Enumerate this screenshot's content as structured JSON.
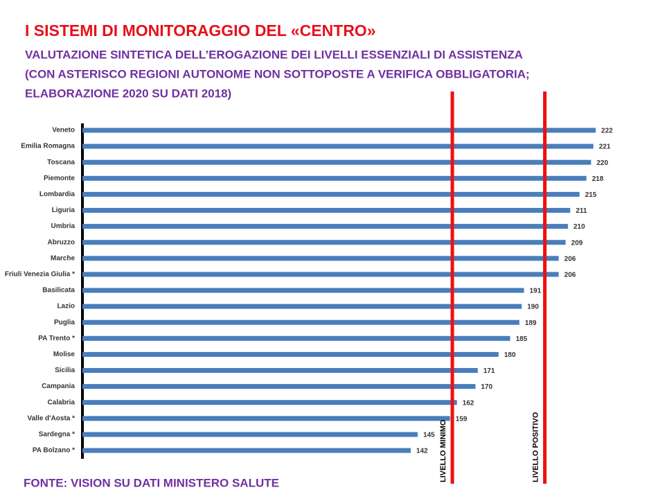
{
  "chart_data": {
    "type": "hbar",
    "title": "I SISTEMI DI MONITORAGGIO DEL «CENTRO»",
    "subtitle": [
      "VALUTAZIONE SINTETICA DELL’EROGAZIONE DEI LIVELLI ESSENZIALI DI ASSISTENZA",
      "(CON ASTERISCO REGIONI AUTONOME NON SOTTOPOSTE A VERIFICA OBBLIGATORIA;",
      "ELABORAZIONE 2020 SU DATI 2018)"
    ],
    "source": "FONTE: VISION SU DATI MINISTERO SALUTE",
    "categories": [
      "Veneto",
      "Emilia Romagna",
      "Toscana",
      "Piemonte",
      "Lombardia",
      "Liguria",
      "Umbria",
      "Abruzzo",
      "Marche",
      "Friuli Venezia Giulia *",
      "Basilicata",
      "Lazio",
      "Puglia",
      "PA Trento *",
      "Molise",
      "Sicilia",
      "Campania",
      "Calabria",
      "Valle d'Aosta *",
      "Sardegna *",
      "PA Bolzano *"
    ],
    "values": [
      222,
      221,
      220,
      218,
      215,
      211,
      210,
      209,
      206,
      206,
      191,
      190,
      189,
      185,
      180,
      171,
      170,
      162,
      159,
      145,
      142
    ],
    "color": "#4a7ebb",
    "xlim": [
      0,
      240
    ],
    "reference_lines": [
      {
        "label": "LIVELLO MINIMO",
        "value": 160,
        "color": "#ee1111"
      },
      {
        "label": "LIVELLO POSITIVO",
        "value": 200,
        "color": "#ee1111"
      }
    ]
  }
}
